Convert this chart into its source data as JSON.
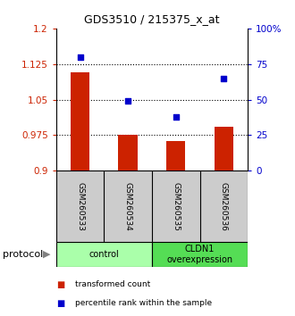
{
  "title": "GDS3510 / 215375_x_at",
  "samples": [
    "GSM260533",
    "GSM260534",
    "GSM260535",
    "GSM260536"
  ],
  "transformed_counts": [
    1.108,
    0.975,
    0.962,
    0.993
  ],
  "percentile_ranks": [
    80,
    49,
    38,
    65
  ],
  "bar_baseline": 0.9,
  "left_ylim": [
    0.9,
    1.2
  ],
  "left_yticks": [
    0.9,
    0.975,
    1.05,
    1.125,
    1.2
  ],
  "left_ytick_labels": [
    "0.9",
    "0.975",
    "1.05",
    "1.125",
    "1.2"
  ],
  "right_ylim": [
    0,
    100
  ],
  "right_yticks": [
    0,
    25,
    50,
    75,
    100
  ],
  "right_ytick_labels": [
    "0",
    "25",
    "50",
    "75",
    "100%"
  ],
  "bar_color": "#cc2200",
  "dot_color": "#0000cc",
  "grid_color": "#000000",
  "protocol_groups": [
    {
      "label": "control",
      "samples": [
        0,
        1
      ],
      "color": "#aaffaa"
    },
    {
      "label": "CLDN1\noverexpression",
      "samples": [
        2,
        3
      ],
      "color": "#55dd55"
    }
  ],
  "legend_bar_label": "transformed count",
  "legend_dot_label": "percentile rank within the sample",
  "protocol_label": "protocol",
  "tick_label_color_left": "#cc2200",
  "tick_label_color_right": "#0000cc",
  "background_xlabel": "#cccccc",
  "fig_width": 3.3,
  "fig_height": 3.54
}
